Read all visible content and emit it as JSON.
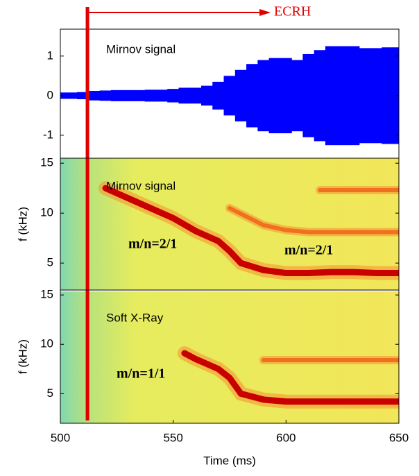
{
  "chart_data": [
    {
      "type": "envelope",
      "title": "Mirnov signal",
      "color": "#0000ff",
      "x": [
        500,
        505,
        510,
        515,
        520,
        525,
        530,
        535,
        540,
        545,
        550,
        555,
        560,
        565,
        570,
        575,
        580,
        585,
        590,
        595,
        600,
        605,
        610,
        615,
        620,
        625,
        630,
        635,
        640,
        645,
        650
      ],
      "values": [
        0.08,
        0.08,
        0.09,
        0.12,
        0.13,
        0.14,
        0.14,
        0.14,
        0.15,
        0.15,
        0.17,
        0.2,
        0.2,
        0.25,
        0.35,
        0.5,
        0.65,
        0.8,
        0.9,
        0.95,
        0.95,
        0.9,
        1.05,
        1.15,
        1.25,
        1.25,
        1.25,
        1.2,
        1.2,
        1.22,
        1.22
      ],
      "xlim": [
        500,
        650
      ],
      "ylim": [
        -1.58,
        1.68
      ],
      "yticks": [
        -1,
        0,
        1
      ],
      "marker": {
        "x": 512,
        "label": "ECRH",
        "color": "#e00000"
      }
    },
    {
      "type": "spectrogram",
      "title": "Mirnov signal",
      "ylabel": "f (kHz)",
      "xlim": [
        500,
        650
      ],
      "ylim": [
        2.3,
        15.5
      ],
      "yticks": [
        5,
        10,
        15
      ],
      "annotations": [
        "m/n=2/1",
        "m/n=2/1"
      ],
      "series": [
        {
          "color": "#c80000",
          "x": [
            520,
            530,
            540,
            550,
            560,
            570,
            575,
            580,
            590,
            600,
            610,
            620,
            630,
            640,
            650
          ],
          "values": [
            12.5,
            11.5,
            10.5,
            9.5,
            8.2,
            7.2,
            6.2,
            5.0,
            4.3,
            4.0,
            4.0,
            4.1,
            4.1,
            4.0,
            4.0
          ]
        },
        {
          "color": "#f07020",
          "x": [
            575,
            590,
            600,
            610,
            620,
            650
          ],
          "values": [
            10.5,
            8.8,
            8.3,
            8.1,
            8.1,
            8.1
          ]
        },
        {
          "color": "#f07020",
          "x": [
            615,
            650
          ],
          "values": [
            12.3,
            12.3
          ]
        }
      ]
    },
    {
      "type": "spectrogram",
      "title": "Soft X-Ray",
      "ylabel": "f (kHz)",
      "xlabel": "Time (ms)",
      "xlim": [
        500,
        650
      ],
      "xticks": [
        500,
        550,
        600,
        650
      ],
      "ylim": [
        2.0,
        15.5
      ],
      "yticks": [
        5,
        10,
        15
      ],
      "annotations": [
        "m/n=1/1"
      ],
      "series": [
        {
          "color": "#c80000",
          "x": [
            555,
            560,
            565,
            570,
            575,
            580,
            590,
            600,
            620,
            650
          ],
          "values": [
            9.1,
            8.5,
            8.0,
            7.5,
            6.6,
            5.0,
            4.4,
            4.2,
            4.2,
            4.2
          ]
        },
        {
          "color": "#f07020",
          "x": [
            590,
            600,
            620,
            650
          ],
          "values": [
            8.4,
            8.4,
            8.4,
            8.4
          ]
        }
      ]
    }
  ]
}
